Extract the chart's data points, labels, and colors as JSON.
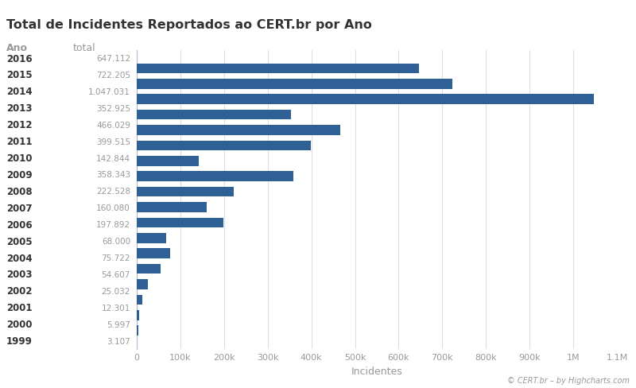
{
  "title": "Total de Incidentes Reportados ao CERT.br por Ano",
  "xlabel": "Incidentes",
  "col1_header": "Ano",
  "col2_header": "total",
  "years": [
    "2016",
    "2015",
    "2014",
    "2013",
    "2012",
    "2011",
    "2010",
    "2009",
    "2008",
    "2007",
    "2006",
    "2005",
    "2004",
    "2003",
    "2002",
    "2001",
    "2000",
    "1999"
  ],
  "values": [
    647112,
    722205,
    1047031,
    352925,
    466029,
    399515,
    142844,
    358343,
    222528,
    160080,
    197892,
    68000,
    75722,
    54607,
    25032,
    12301,
    5997,
    3107
  ],
  "labels": [
    "647.112",
    "722.205",
    "1.047.031",
    "352.925",
    "466.029",
    "399.515",
    "142.844",
    "358.343",
    "222.528",
    "160.080",
    "197.892",
    "68.000",
    "75.722",
    "54.607",
    "25.032",
    "12.301",
    "5.997",
    "3.107"
  ],
  "bar_color": "#2e6096",
  "background_color": "#ffffff",
  "grid_color": "#ddddee",
  "year_text_color": "#333333",
  "value_text_color": "#999999",
  "title_color": "#333333",
  "header_color": "#999999",
  "xlim": [
    0,
    1100000
  ],
  "xticks": [
    0,
    100000,
    200000,
    300000,
    400000,
    500000,
    600000,
    700000,
    800000,
    900000,
    1000000,
    1100000
  ],
  "xtick_labels": [
    "0",
    "100k",
    "200k",
    "300k",
    "400k",
    "500k",
    "600k",
    "700k",
    "800k",
    "900k",
    "1M",
    "1.1M"
  ],
  "watermark": "© CERT.br – by Highcharts.com"
}
